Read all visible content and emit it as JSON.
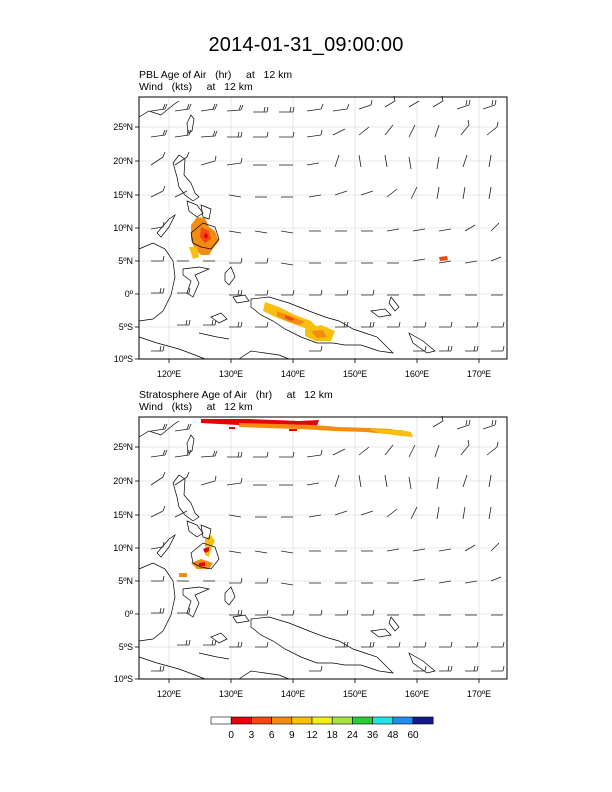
{
  "title": "2014-01-31_09:00:00",
  "panels": [
    {
      "field_line": "PBL Age of Air   (hr)     at   12 km",
      "wind_line": "Wind   (kts)     at   12 km",
      "lat_labels": [
        "25ºN",
        "20ºN",
        "15ºN",
        "10ºN",
        "5ºN",
        "0º",
        "5ºS",
        "10ºS"
      ],
      "lon_labels": [
        "120ºE",
        "130ºE",
        "140ºE",
        "150ºE",
        "160ºE",
        "170ºE"
      ]
    },
    {
      "field_line": "Stratosphere Age of Air   (hr)     at   12 km",
      "wind_line": "Wind   (kts)     at   12 km",
      "lat_labels": [
        "25ºN",
        "20ºN",
        "15ºN",
        "10ºN",
        "5ºN",
        "0º",
        "5ºS",
        "10ºS"
      ],
      "lon_labels": [
        "120ºE",
        "130ºE",
        "140ºE",
        "150ºE",
        "160ºE",
        "170ºE"
      ]
    }
  ],
  "colorbar": {
    "labels": [
      "0",
      "3",
      "6",
      "9",
      "12",
      "18",
      "24",
      "36",
      "48",
      "60"
    ],
    "colors": [
      "#ffffff",
      "#e8000b",
      "#f04a10",
      "#f58c12",
      "#f7c010",
      "#f4ee1e",
      "#a6e63c",
      "#29cc32",
      "#1fe4e8",
      "#1e8ef0",
      "#101a8a"
    ]
  },
  "colors": {
    "coast": "#000000",
    "grid": "#d0d0d0",
    "barb": "#000000"
  }
}
